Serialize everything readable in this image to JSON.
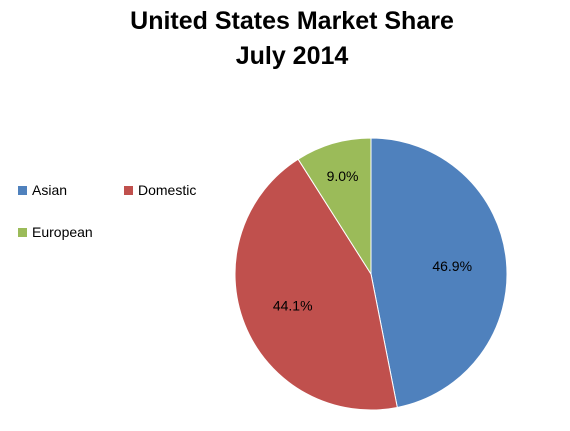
{
  "chart_data": {
    "type": "pie",
    "title": "United States Market Share",
    "subtitle": "July 2014",
    "categories": [
      "Asian",
      "Domestic",
      "European"
    ],
    "values": [
      46.9,
      44.1,
      9.0
    ],
    "data_labels": [
      "46.9%",
      "44.1%",
      "9.0%"
    ],
    "colors": [
      "#4f81bd",
      "#c0504d",
      "#9bbb59"
    ],
    "legend": {
      "position": "left",
      "entries": [
        "Asian",
        "Domestic",
        "European"
      ]
    }
  }
}
